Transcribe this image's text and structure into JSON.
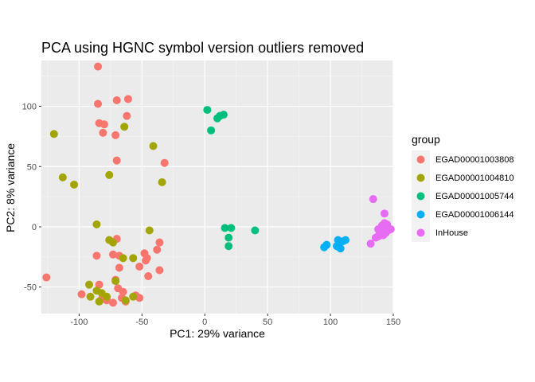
{
  "chart_data": {
    "type": "scatter",
    "title": "PCA using HGNC symbol version outliers removed",
    "xlabel": "PC1: 29% variance",
    "ylabel": "PC2: 8% variance",
    "xlim": [
      -130,
      150
    ],
    "ylim": [
      -72,
      138
    ],
    "x_ticks": [
      -100,
      -50,
      0,
      50,
      100,
      150
    ],
    "y_ticks": [
      -50,
      0,
      50,
      100
    ],
    "x_tick_labels": [
      "-100",
      "-50",
      "0",
      "50",
      "100",
      "150"
    ],
    "y_tick_labels": [
      "-50",
      "0",
      "50",
      "100"
    ],
    "grid": true,
    "legend": {
      "title": "group",
      "position": "right"
    },
    "series": [
      {
        "name": "EGAD00001003808",
        "color": "#F8766D",
        "points": [
          [
            -85,
            133
          ],
          [
            -85,
            102
          ],
          [
            -70,
            105
          ],
          [
            -61,
            106
          ],
          [
            -84,
            86
          ],
          [
            -80,
            85
          ],
          [
            -81,
            78
          ],
          [
            -71,
            76
          ],
          [
            -62,
            92
          ],
          [
            -70,
            55
          ],
          [
            -32,
            53
          ],
          [
            -126,
            -42
          ],
          [
            -86,
            -24
          ],
          [
            -73,
            -23
          ],
          [
            -68,
            -24
          ],
          [
            -70,
            -10
          ],
          [
            -48,
            -22
          ],
          [
            -46,
            -26
          ],
          [
            -47,
            -28
          ],
          [
            -38,
            -19
          ],
          [
            -36,
            -13
          ],
          [
            -52,
            -33
          ],
          [
            -68,
            -34
          ],
          [
            -45,
            -41
          ],
          [
            -36,
            -36
          ],
          [
            -71,
            -44
          ],
          [
            -84,
            -48
          ],
          [
            -69,
            -51
          ],
          [
            -65,
            -54
          ],
          [
            -98,
            -56
          ],
          [
            -82,
            -60
          ],
          [
            -78,
            -61
          ],
          [
            -73,
            -63
          ],
          [
            -66,
            -59
          ],
          [
            -63,
            -62
          ],
          [
            -55,
            -57
          ],
          [
            -52,
            -59
          ]
        ]
      },
      {
        "name": "EGAD00001004810",
        "color": "#A3A500",
        "points": [
          [
            -120,
            77
          ],
          [
            -113,
            41
          ],
          [
            -104,
            35
          ],
          [
            -64,
            83
          ],
          [
            -41,
            67
          ],
          [
            -76,
            43
          ],
          [
            -34,
            37
          ],
          [
            -86,
            2
          ],
          [
            -76,
            -11
          ],
          [
            -73,
            -13
          ],
          [
            -44,
            -3
          ],
          [
            -57,
            -26
          ],
          [
            -65,
            -26
          ],
          [
            -92,
            -48
          ],
          [
            -71,
            -45
          ],
          [
            -86,
            -53
          ],
          [
            -82,
            -55
          ],
          [
            -91,
            -58
          ],
          [
            -78,
            -58
          ],
          [
            -84,
            -62
          ],
          [
            -63,
            -61
          ],
          [
            -57,
            -58
          ]
        ]
      },
      {
        "name": "EGAD00001005744",
        "color": "#00BF7D",
        "points": [
          [
            2,
            97
          ],
          [
            10,
            90
          ],
          [
            12,
            92
          ],
          [
            15,
            93
          ],
          [
            5,
            80
          ],
          [
            16,
            -1
          ],
          [
            21,
            -1
          ],
          [
            19,
            -9
          ],
          [
            19,
            -16
          ],
          [
            40,
            -3
          ]
        ]
      },
      {
        "name": "EGAD00001006144",
        "color": "#00B0F6",
        "points": [
          [
            95,
            -17
          ],
          [
            97,
            -15
          ],
          [
            106,
            -11
          ],
          [
            110,
            -12
          ],
          [
            112,
            -11
          ],
          [
            105,
            -16
          ],
          [
            107,
            -17
          ],
          [
            108,
            -18
          ]
        ]
      },
      {
        "name": "InHouse",
        "color": "#E76BF3",
        "points": [
          [
            134,
            23
          ],
          [
            143,
            11
          ],
          [
            138,
            -2
          ],
          [
            141,
            1
          ],
          [
            143,
            3
          ],
          [
            145,
            2
          ],
          [
            140,
            -4
          ],
          [
            142,
            -7
          ],
          [
            138,
            -8
          ],
          [
            144,
            -5
          ],
          [
            146,
            -3
          ],
          [
            148,
            -2
          ],
          [
            132,
            -14
          ],
          [
            136,
            -9
          ],
          [
            139,
            -6
          ],
          [
            141,
            -5
          ],
          [
            145,
            0
          ],
          [
            143,
            -1
          ]
        ]
      }
    ]
  }
}
